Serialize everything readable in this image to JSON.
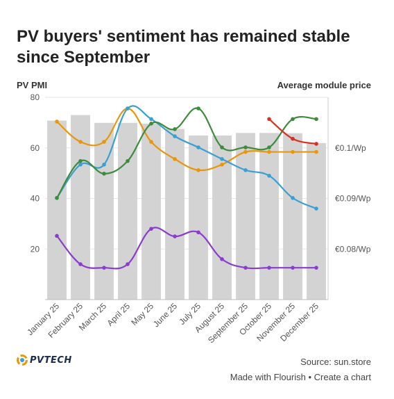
{
  "title": "PV buyers' sentiment has remained stable since September",
  "left_axis_label": "PV PMI",
  "right_axis_label": "Average module price",
  "logo_text": "PVTECH",
  "source": "Source: sun.store",
  "footer": {
    "made_with": "Made with Flourish",
    "separator": " • ",
    "create": "Create a chart"
  },
  "chart_data": {
    "type": "bar",
    "categories": [
      "January 25",
      "February 25",
      "March 25",
      "April 25",
      "May 25",
      "June 25",
      "July 25",
      "August 25",
      "September 25",
      "October 25",
      "November 25",
      "December 25"
    ],
    "ylim": [
      0,
      80
    ],
    "yticks": [
      20,
      40,
      60,
      80
    ],
    "right_axis": {
      "ylim": [
        0.07,
        0.11
      ],
      "ticks": [
        {
          "value": 0.1,
          "label": "€0.1/Wp"
        },
        {
          "value": 0.09,
          "label": "€0.09/Wp"
        },
        {
          "value": 0.08,
          "label": "€0.08/Wp"
        }
      ]
    },
    "bars": {
      "color": "#d3d3d3",
      "values": [
        70.8,
        73.0,
        69.9,
        69.9,
        69.6,
        67.5,
        64.9,
        64.9,
        65.9,
        65.9,
        65.8,
        61.9
      ]
    },
    "series": [
      {
        "color": "#e8960c",
        "values": [
          0.1052,
          0.1012,
          0.1012,
          0.1078,
          0.1012,
          0.0978,
          0.0956,
          0.0967,
          0.0992,
          0.0992,
          0.0992,
          0.0992
        ]
      },
      {
        "color": "#3a9fd1",
        "values": [
          0.0901,
          0.0967,
          0.0967,
          0.1078,
          0.1057,
          0.1023,
          0.1001,
          0.0978,
          0.0956,
          0.0945,
          0.0901,
          0.088
        ]
      },
      {
        "color": "#3d8b3d",
        "values": [
          0.0901,
          0.0974,
          0.0949,
          0.0974,
          0.1048,
          0.1037,
          0.1078,
          0.1001,
          0.1001,
          0.1001,
          0.1057,
          0.1057
        ]
      },
      {
        "color": "#8a3ccf",
        "values": [
          0.0826,
          0.077,
          0.0763,
          0.077,
          0.084,
          0.0825,
          0.0833,
          0.078,
          0.0763,
          0.0763,
          0.0763,
          0.0763
        ]
      },
      {
        "color": "#d93025",
        "values": [
          null,
          null,
          null,
          null,
          null,
          null,
          null,
          null,
          null,
          0.1057,
          0.1018,
          0.1008
        ]
      }
    ],
    "grid": true,
    "legend": "none"
  }
}
